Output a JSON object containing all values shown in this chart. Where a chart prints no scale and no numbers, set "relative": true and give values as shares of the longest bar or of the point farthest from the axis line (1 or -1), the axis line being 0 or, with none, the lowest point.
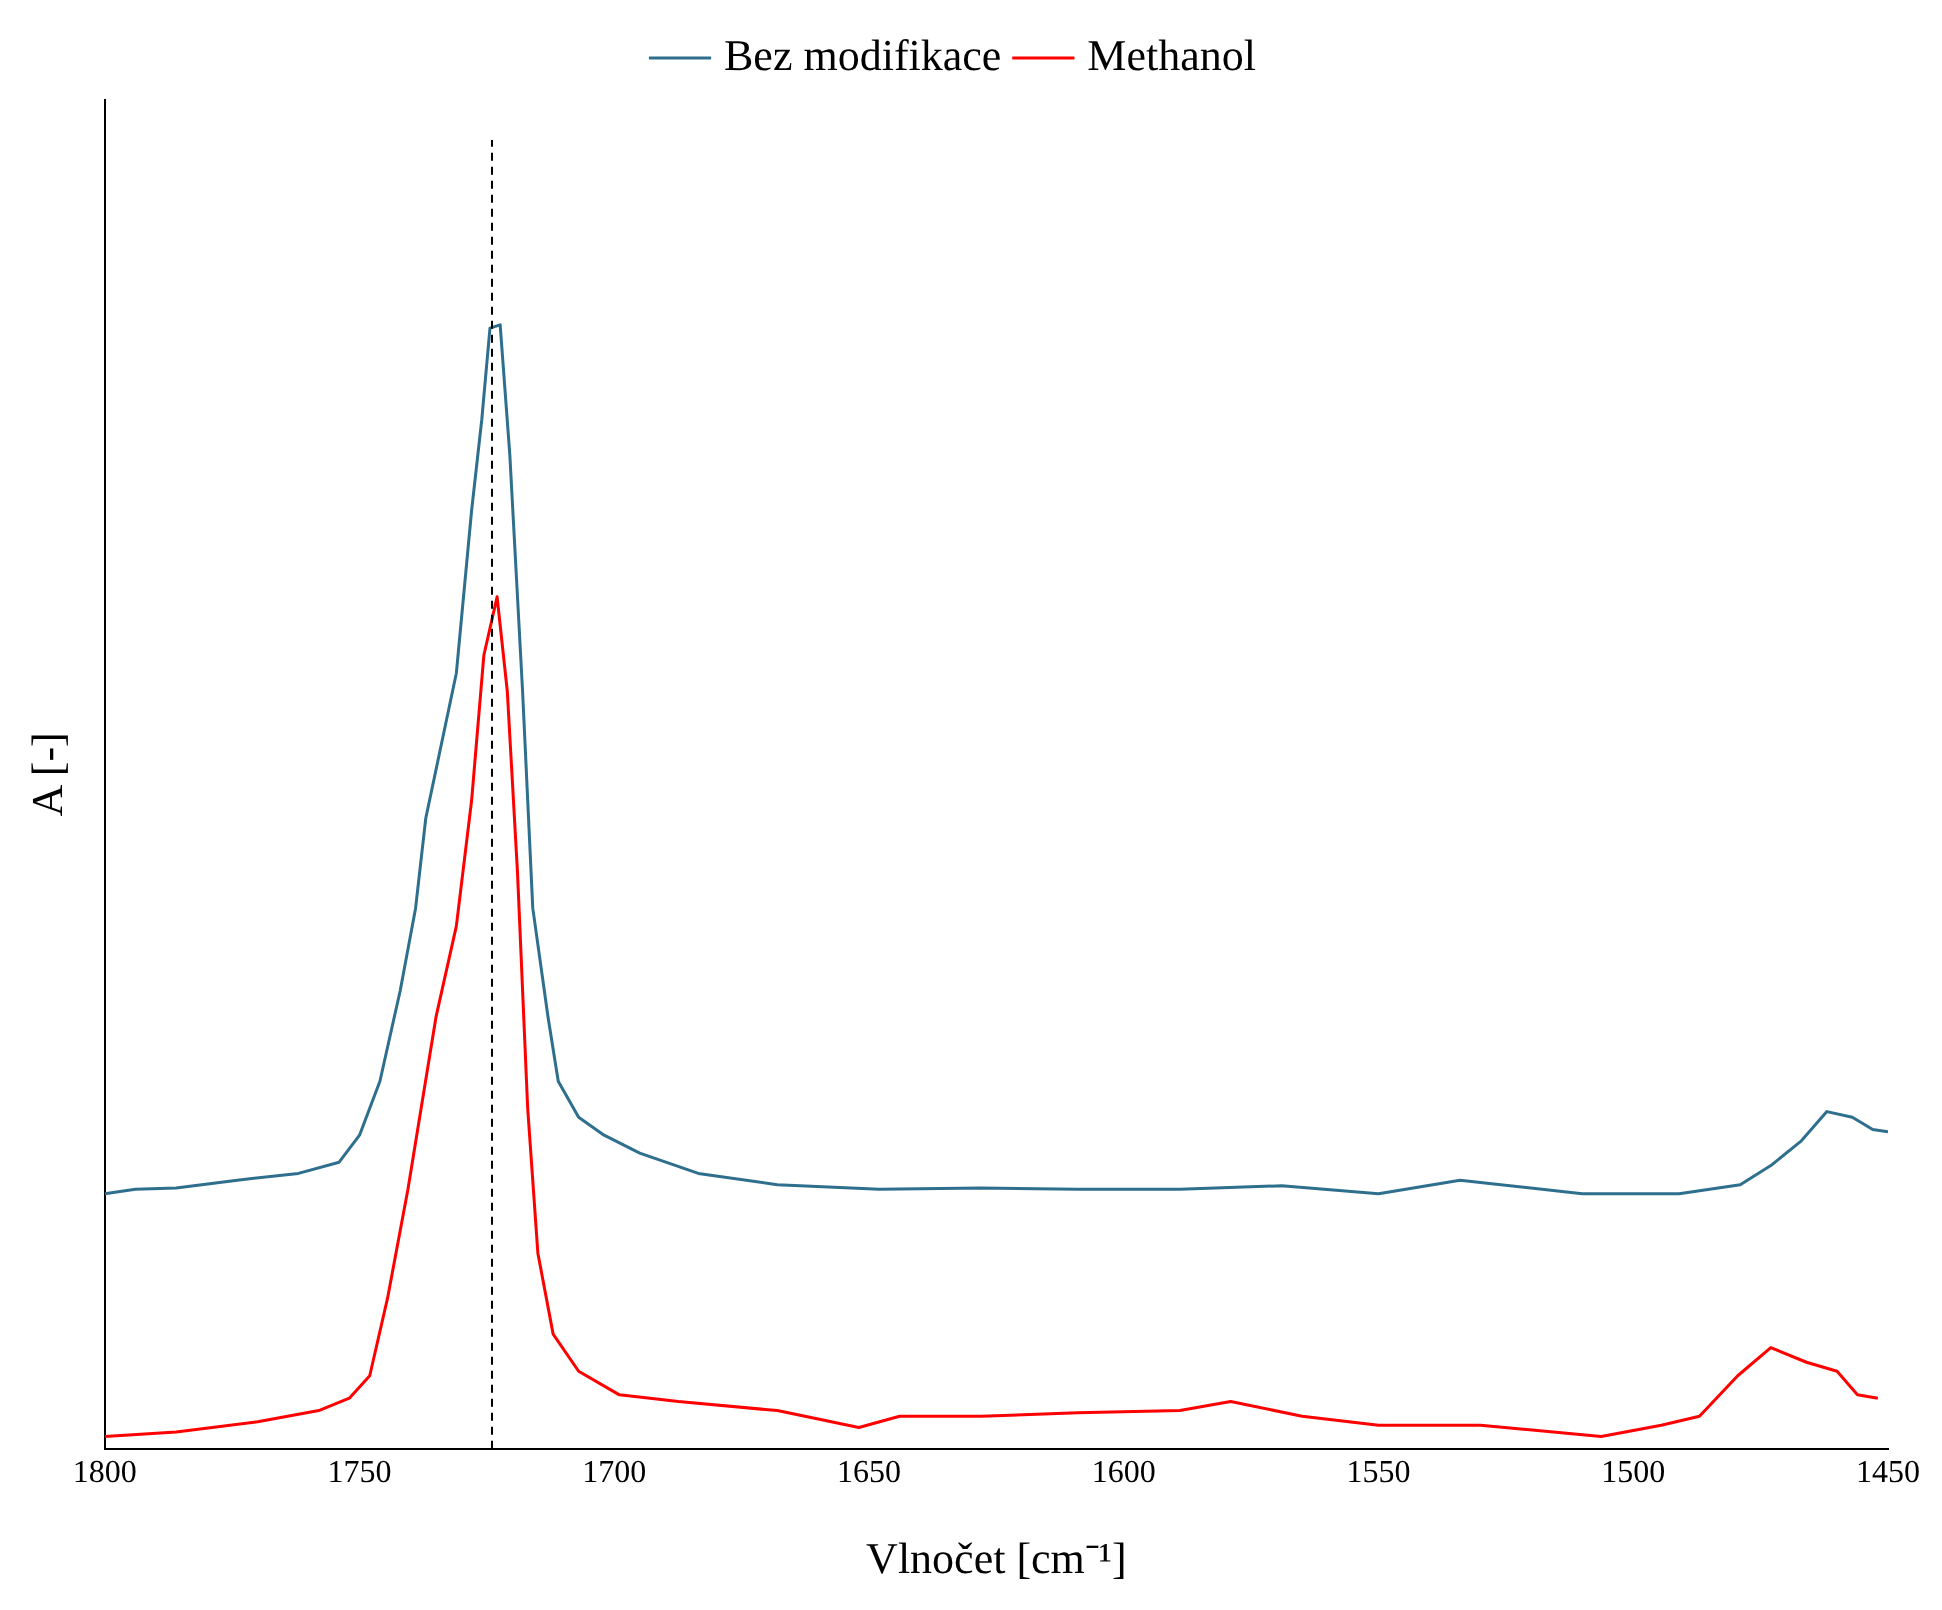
{
  "chart_data": {
    "type": "line",
    "xlabel": "Vlnočet [cm⁻¹]",
    "ylabel": "A [-]",
    "relative": true,
    "xlim": [
      1800,
      1450
    ],
    "xticks": [
      1800,
      1750,
      1700,
      1650,
      1600,
      1550,
      1500,
      1450
    ],
    "grid": false,
    "legend": "top",
    "marker": "none",
    "line_style": "solid",
    "ref_lines": [
      {
        "axis": "x",
        "value": 1724,
        "color": "#000000",
        "line_style": "dashed"
      }
    ],
    "series": [
      {
        "name": "Bez modifikace",
        "color": "#2e6f8e",
        "x": [
          1800,
          1794,
          1786,
          1774,
          1762,
          1754,
          1750,
          1746,
          1742,
          1739,
          1737,
          1731,
          1728,
          1726,
          1724.4,
          1722.4,
          1720.5,
          1718,
          1716,
          1713,
          1711,
          1707,
          1702,
          1695,
          1683.5,
          1668,
          1648,
          1628,
          1609,
          1589,
          1569,
          1550,
          1534,
          1510,
          1491,
          1479,
          1473,
          1467,
          1462,
          1457,
          1453,
          1450
        ],
        "values": [
          0.227,
          0.231,
          0.232,
          0.239,
          0.245,
          0.255,
          0.279,
          0.327,
          0.408,
          0.481,
          0.561,
          0.69,
          0.835,
          0.916,
          0.997,
          1,
          0.884,
          0.674,
          0.481,
          0.384,
          0.327,
          0.295,
          0.279,
          0.263,
          0.245,
          0.235,
          0.231,
          0.232,
          0.231,
          0.231,
          0.234,
          0.227,
          0.239,
          0.227,
          0.227,
          0.235,
          0.252,
          0.274,
          0.3,
          0.295,
          0.284,
          0.282
        ]
      },
      {
        "name": "Methanol",
        "color": "#ff0000",
        "x": [
          1800,
          1786,
          1770,
          1758,
          1752,
          1748,
          1744.5,
          1740.5,
          1735,
          1731,
          1728,
          1725.6,
          1723,
          1721,
          1719,
          1717,
          1715,
          1712,
          1707,
          1699,
          1687.4,
          1668,
          1652,
          1644,
          1628,
          1609,
          1589,
          1579,
          1565,
          1550,
          1530,
          1506.3,
          1494.5,
          1487,
          1479.5,
          1473,
          1466,
          1460,
          1456,
          1452
        ],
        "values": [
          0.011,
          0.015,
          0.024,
          0.034,
          0.045,
          0.065,
          0.134,
          0.231,
          0.384,
          0.465,
          0.577,
          0.706,
          0.758,
          0.674,
          0.513,
          0.303,
          0.174,
          0.102,
          0.069,
          0.048,
          0.042,
          0.034,
          0.019,
          0.029,
          0.029,
          0.032,
          0.034,
          0.042,
          0.029,
          0.021,
          0.021,
          0.011,
          0.021,
          0.029,
          0.065,
          0.09,
          0.077,
          0.069,
          0.048,
          0.045
        ]
      }
    ]
  }
}
